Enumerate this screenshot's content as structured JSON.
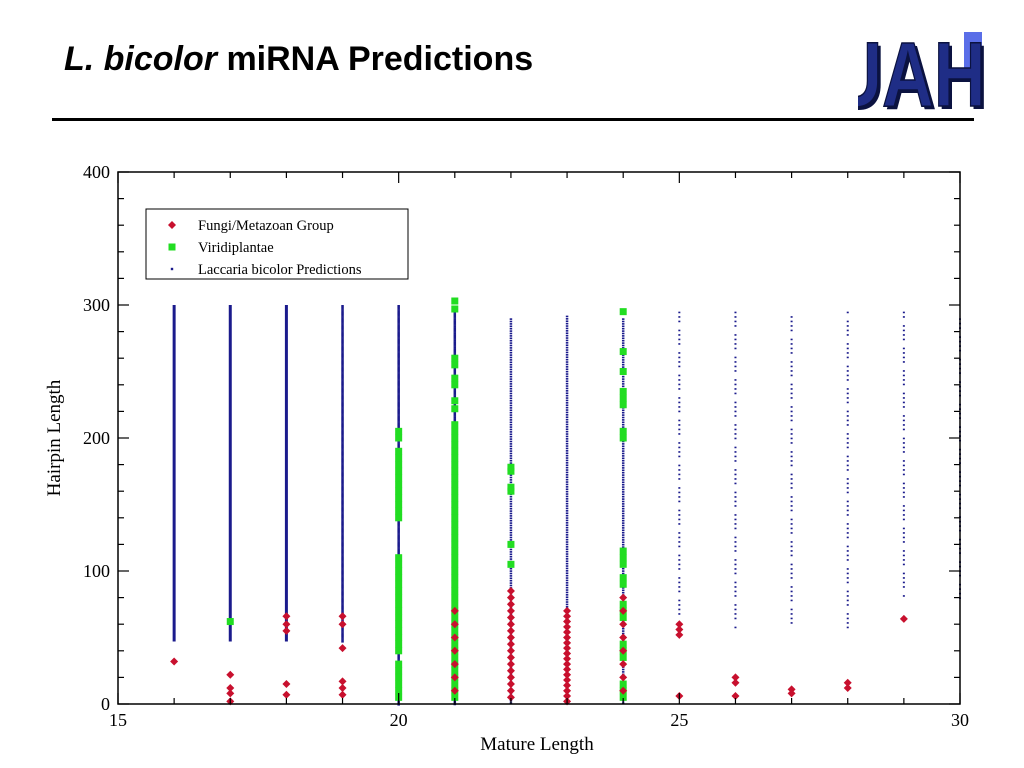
{
  "slide": {
    "title_italic": "L. bicolor",
    "title_rest": " miRNA Predictions",
    "logo_text": "UAH",
    "logo_colors": {
      "fill": "#1f2d86",
      "accent": "#5a6ee8",
      "outline": "#0b1240"
    }
  },
  "chart_data": {
    "type": "scatter",
    "title": "",
    "xlabel": "Mature Length",
    "ylabel": "Hairpin Length",
    "xlim": [
      15,
      30
    ],
    "ylim": [
      0,
      400
    ],
    "xticks": [
      15,
      20,
      25,
      30
    ],
    "yticks": [
      0,
      100,
      200,
      300,
      400
    ],
    "grid": false,
    "legend_position": "top-left",
    "series": [
      {
        "name": "Fungi/Metazoan Group",
        "marker": "diamond",
        "color": "#c8102e",
        "points": [
          [
            16,
            32
          ],
          [
            17,
            22
          ],
          [
            17,
            12
          ],
          [
            17,
            8
          ],
          [
            17,
            2
          ],
          [
            18,
            66
          ],
          [
            18,
            60
          ],
          [
            18,
            55
          ],
          [
            18,
            15
          ],
          [
            18,
            7
          ],
          [
            19,
            66
          ],
          [
            19,
            60
          ],
          [
            19,
            42
          ],
          [
            19,
            17
          ],
          [
            19,
            12
          ],
          [
            19,
            7
          ],
          [
            21,
            70
          ],
          [
            21,
            60
          ],
          [
            21,
            50
          ],
          [
            21,
            40
          ],
          [
            21,
            30
          ],
          [
            21,
            20
          ],
          [
            21,
            10
          ],
          [
            22,
            85
          ],
          [
            22,
            80
          ],
          [
            22,
            75
          ],
          [
            22,
            70
          ],
          [
            22,
            65
          ],
          [
            22,
            60
          ],
          [
            22,
            55
          ],
          [
            22,
            50
          ],
          [
            22,
            45
          ],
          [
            22,
            40
          ],
          [
            22,
            35
          ],
          [
            22,
            30
          ],
          [
            22,
            25
          ],
          [
            22,
            20
          ],
          [
            22,
            15
          ],
          [
            22,
            10
          ],
          [
            22,
            5
          ],
          [
            23,
            70
          ],
          [
            23,
            66
          ],
          [
            23,
            62
          ],
          [
            23,
            58
          ],
          [
            23,
            54
          ],
          [
            23,
            50
          ],
          [
            23,
            46
          ],
          [
            23,
            42
          ],
          [
            23,
            38
          ],
          [
            23,
            34
          ],
          [
            23,
            30
          ],
          [
            23,
            26
          ],
          [
            23,
            22
          ],
          [
            23,
            18
          ],
          [
            23,
            14
          ],
          [
            23,
            10
          ],
          [
            23,
            6
          ],
          [
            23,
            2
          ],
          [
            24,
            80
          ],
          [
            24,
            70
          ],
          [
            24,
            60
          ],
          [
            24,
            50
          ],
          [
            24,
            40
          ],
          [
            24,
            30
          ],
          [
            24,
            20
          ],
          [
            24,
            10
          ],
          [
            25,
            60
          ],
          [
            25,
            56
          ],
          [
            25,
            52
          ],
          [
            25,
            6
          ],
          [
            26,
            20
          ],
          [
            26,
            16
          ],
          [
            26,
            6
          ],
          [
            27,
            11
          ],
          [
            27,
            8
          ],
          [
            28,
            16
          ],
          [
            28,
            12
          ],
          [
            29,
            64
          ]
        ]
      },
      {
        "name": "Viridiplantae",
        "marker": "square",
        "color": "#22dd22",
        "points": [
          [
            17,
            62
          ],
          [
            20,
            205
          ],
          [
            20,
            200
          ],
          [
            20,
            190
          ],
          [
            20,
            185
          ],
          [
            20,
            180
          ],
          [
            20,
            175
          ],
          [
            20,
            170
          ],
          [
            20,
            165
          ],
          [
            20,
            160
          ],
          [
            20,
            155
          ],
          [
            20,
            150
          ],
          [
            20,
            145
          ],
          [
            20,
            140
          ],
          [
            20,
            110
          ],
          [
            20,
            105
          ],
          [
            20,
            100
          ],
          [
            20,
            95
          ],
          [
            20,
            90
          ],
          [
            20,
            85
          ],
          [
            20,
            80
          ],
          [
            20,
            75
          ],
          [
            20,
            70
          ],
          [
            20,
            65
          ],
          [
            20,
            60
          ],
          [
            20,
            55
          ],
          [
            20,
            50
          ],
          [
            20,
            45
          ],
          [
            20,
            40
          ],
          [
            20,
            30
          ],
          [
            20,
            25
          ],
          [
            20,
            20
          ],
          [
            20,
            15
          ],
          [
            20,
            10
          ],
          [
            20,
            5
          ],
          [
            21,
            303
          ],
          [
            21,
            297
          ],
          [
            21,
            260
          ],
          [
            21,
            255
          ],
          [
            21,
            245
          ],
          [
            21,
            240
          ],
          [
            21,
            228
          ],
          [
            21,
            222
          ],
          [
            21,
            210
          ],
          [
            21,
            205
          ],
          [
            21,
            200
          ],
          [
            21,
            195
          ],
          [
            21,
            190
          ],
          [
            21,
            185
          ],
          [
            21,
            180
          ],
          [
            21,
            175
          ],
          [
            21,
            170
          ],
          [
            21,
            165
          ],
          [
            21,
            160
          ],
          [
            21,
            155
          ],
          [
            21,
            150
          ],
          [
            21,
            145
          ],
          [
            21,
            140
          ],
          [
            21,
            135
          ],
          [
            21,
            130
          ],
          [
            21,
            125
          ],
          [
            21,
            120
          ],
          [
            21,
            115
          ],
          [
            21,
            110
          ],
          [
            21,
            105
          ],
          [
            21,
            100
          ],
          [
            21,
            95
          ],
          [
            21,
            90
          ],
          [
            21,
            85
          ],
          [
            21,
            80
          ],
          [
            21,
            75
          ],
          [
            21,
            70
          ],
          [
            21,
            65
          ],
          [
            21,
            60
          ],
          [
            21,
            55
          ],
          [
            21,
            50
          ],
          [
            21,
            45
          ],
          [
            21,
            40
          ],
          [
            21,
            35
          ],
          [
            21,
            30
          ],
          [
            21,
            25
          ],
          [
            21,
            20
          ],
          [
            21,
            15
          ],
          [
            21,
            10
          ],
          [
            21,
            5
          ],
          [
            22,
            178
          ],
          [
            22,
            175
          ],
          [
            22,
            163
          ],
          [
            22,
            160
          ],
          [
            22,
            120
          ],
          [
            22,
            105
          ],
          [
            24,
            295
          ],
          [
            24,
            265
          ],
          [
            24,
            250
          ],
          [
            24,
            235
          ],
          [
            24,
            230
          ],
          [
            24,
            225
          ],
          [
            24,
            205
          ],
          [
            24,
            200
          ],
          [
            24,
            115
          ],
          [
            24,
            110
          ],
          [
            24,
            105
          ],
          [
            24,
            95
          ],
          [
            24,
            90
          ],
          [
            24,
            75
          ],
          [
            24,
            70
          ],
          [
            24,
            65
          ],
          [
            24,
            45
          ],
          [
            24,
            40
          ],
          [
            24,
            35
          ],
          [
            24,
            15
          ],
          [
            24,
            10
          ],
          [
            24,
            5
          ]
        ]
      },
      {
        "name": "Laccaria bicolor Predictions",
        "marker": "dot",
        "color": "#1a1a8c",
        "columns": [
          {
            "x": 16,
            "ymin": 47,
            "ymax": 300,
            "density": "solid"
          },
          {
            "x": 17,
            "ymin": 47,
            "ymax": 300,
            "density": "solid"
          },
          {
            "x": 18,
            "ymin": 47,
            "ymax": 300,
            "density": "solid"
          },
          {
            "x": 19,
            "ymin": 47,
            "ymax": 300,
            "density": "dense"
          },
          {
            "x": 20,
            "ymin": 0,
            "ymax": 300,
            "density": "dense"
          },
          {
            "x": 21,
            "ymin": 0,
            "ymax": 295,
            "density": "dense"
          },
          {
            "x": 22,
            "ymin": 0,
            "ymax": 290,
            "density": "medium"
          },
          {
            "x": 23,
            "ymin": 0,
            "ymax": 292,
            "density": "medium"
          },
          {
            "x": 24,
            "ymin": 0,
            "ymax": 290,
            "density": "medium"
          },
          {
            "x": 25,
            "ymin": 55,
            "ymax": 295,
            "density": "sparse"
          },
          {
            "x": 26,
            "ymin": 55,
            "ymax": 295,
            "density": "sparse"
          },
          {
            "x": 27,
            "ymin": 55,
            "ymax": 295,
            "density": "sparse"
          },
          {
            "x": 28,
            "ymin": 55,
            "ymax": 295,
            "density": "sparse"
          },
          {
            "x": 29,
            "ymin": 80,
            "ymax": 295,
            "density": "sparse"
          },
          {
            "x": 30,
            "ymin": 80,
            "ymax": 290,
            "density": "sparse"
          }
        ]
      }
    ]
  }
}
